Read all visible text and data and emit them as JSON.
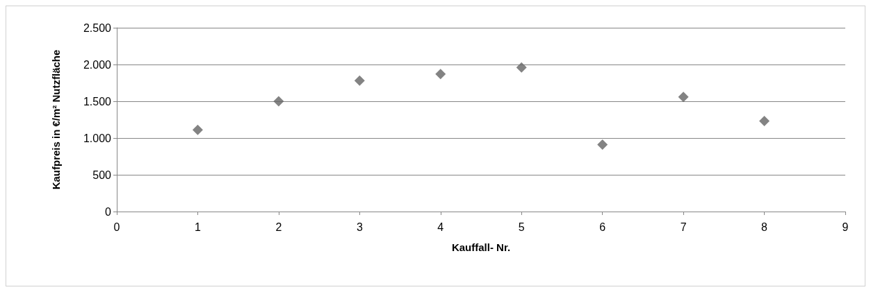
{
  "chart_data": {
    "type": "scatter",
    "xlabel": "Kauffall- Nr.",
    "ylabel": "Kaufpreis in €/m² Nutzfläche",
    "x": [
      1,
      2,
      3,
      4,
      5,
      6,
      7,
      8
    ],
    "values": [
      1110,
      1500,
      1780,
      1870,
      1960,
      910,
      1560,
      1230
    ],
    "color": "#646464",
    "marker": "diamond",
    "xlim": [
      0,
      9
    ],
    "xticks": [
      0,
      1,
      2,
      3,
      4,
      5,
      6,
      7,
      8,
      9
    ],
    "ylim": [
      0,
      2500
    ],
    "yticks": [
      0,
      {
        "value": 500,
        "label": "500"
      },
      {
        "value": 1000,
        "label": "1.000"
      },
      {
        "value": 1500,
        "label": "1.500"
      },
      {
        "value": 2000,
        "label": "2.000"
      },
      {
        "value": 2500,
        "label": "2.500"
      }
    ],
    "grid": "y"
  }
}
